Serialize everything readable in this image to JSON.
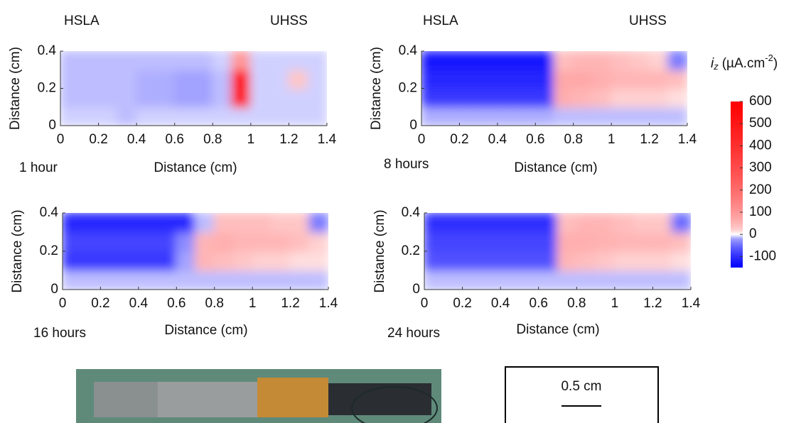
{
  "chart_data": [
    {
      "type": "heatmap",
      "left_label": "HSLA",
      "right_label": "UHSS",
      "caption": "1 hour",
      "xlabel": "Distance (cm)",
      "ylabel": "Distance (cm)",
      "xlim": [
        0,
        1.4
      ],
      "ylim": [
        0,
        0.4
      ],
      "xticks": [
        0,
        0.2,
        0.4,
        0.6,
        0.8,
        1,
        1.2,
        1.4
      ],
      "yticks": [
        0,
        0.2,
        0.4
      ],
      "x": [
        0.05,
        0.15,
        0.25,
        0.35,
        0.45,
        0.55,
        0.65,
        0.75,
        0.85,
        0.95,
        1.05,
        1.15,
        1.25,
        1.35
      ],
      "y": [
        0.05,
        0.15,
        0.25,
        0.35
      ],
      "values": [
        [
          -5,
          -5,
          -5,
          -10,
          -5,
          -5,
          -5,
          -5,
          -5,
          -5,
          -5,
          -5,
          -5,
          -5
        ],
        [
          -10,
          -10,
          -10,
          -10,
          -15,
          -15,
          -20,
          -20,
          -10,
          500,
          -5,
          -5,
          -5,
          -5
        ],
        [
          -10,
          -10,
          -10,
          -10,
          -15,
          -15,
          -20,
          -20,
          -10,
          550,
          -5,
          -5,
          30,
          -5
        ],
        [
          -10,
          -10,
          -10,
          -10,
          -10,
          -10,
          -10,
          -10,
          -5,
          100,
          -5,
          -5,
          -5,
          -5
        ]
      ]
    },
    {
      "type": "heatmap",
      "left_label": "HSLA",
      "right_label": "UHSS",
      "caption": "8 hours",
      "xlabel": "Distance (cm)",
      "ylabel": "Distance (cm)",
      "xlim": [
        0,
        1.4
      ],
      "ylim": [
        0,
        0.4
      ],
      "xticks": [
        0,
        0.2,
        0.4,
        0.6,
        0.8,
        1,
        1.2,
        1.4
      ],
      "yticks": [
        0,
        0.2,
        0.4
      ],
      "x": [
        0.05,
        0.15,
        0.25,
        0.35,
        0.45,
        0.55,
        0.65,
        0.75,
        0.85,
        0.95,
        1.05,
        1.15,
        1.25,
        1.35
      ],
      "y": [
        0.05,
        0.15,
        0.25,
        0.35
      ],
      "values": [
        [
          -15,
          -15,
          -15,
          -15,
          -15,
          -15,
          -15,
          -10,
          -10,
          -10,
          -10,
          -10,
          -10,
          -10
        ],
        [
          -90,
          -90,
          -90,
          -90,
          -90,
          -90,
          -90,
          60,
          50,
          40,
          20,
          20,
          20,
          10
        ],
        [
          -110,
          -110,
          -110,
          -110,
          -110,
          -110,
          -110,
          70,
          70,
          60,
          50,
          50,
          50,
          40
        ],
        [
          -130,
          -130,
          -130,
          -130,
          -130,
          -130,
          -130,
          40,
          50,
          50,
          40,
          30,
          20,
          -40
        ]
      ]
    },
    {
      "type": "heatmap",
      "caption": "16 hours",
      "xlabel": "Distance (cm)",
      "ylabel": "Distance (cm)",
      "xlim": [
        0,
        1.4
      ],
      "ylim": [
        0,
        0.4
      ],
      "xticks": [
        0,
        0.2,
        0.4,
        0.6,
        0.8,
        1,
        1.2,
        1.4
      ],
      "yticks": [
        0,
        0.2,
        0.4
      ],
      "x": [
        0.05,
        0.15,
        0.25,
        0.35,
        0.45,
        0.55,
        0.65,
        0.75,
        0.85,
        0.95,
        1.05,
        1.15,
        1.25,
        1.35
      ],
      "y": [
        0.05,
        0.15,
        0.25,
        0.35
      ],
      "values": [
        [
          -10,
          -10,
          -10,
          -10,
          -10,
          -10,
          -10,
          -10,
          -10,
          -10,
          -10,
          -10,
          -10,
          -10
        ],
        [
          -90,
          -90,
          -90,
          -90,
          -90,
          -90,
          -20,
          50,
          40,
          30,
          20,
          20,
          10,
          10
        ],
        [
          -80,
          -80,
          -80,
          -80,
          -80,
          -80,
          -30,
          50,
          60,
          50,
          50,
          50,
          40,
          20
        ],
        [
          -110,
          -110,
          -110,
          -110,
          -110,
          -110,
          -110,
          -10,
          40,
          40,
          40,
          30,
          30,
          -40
        ]
      ]
    },
    {
      "type": "heatmap",
      "caption": "24 hours",
      "xlabel": "Distance (cm)",
      "ylabel": "Distance (cm)",
      "xlim": [
        0,
        1.4
      ],
      "ylim": [
        0,
        0.4
      ],
      "xticks": [
        0,
        0.2,
        0.4,
        0.6,
        0.8,
        1,
        1.2,
        1.4
      ],
      "yticks": [
        0,
        0.2,
        0.4
      ],
      "x": [
        0.05,
        0.15,
        0.25,
        0.35,
        0.45,
        0.55,
        0.65,
        0.75,
        0.85,
        0.95,
        1.05,
        1.15,
        1.25,
        1.35
      ],
      "y": [
        0.05,
        0.15,
        0.25,
        0.35
      ],
      "values": [
        [
          -10,
          -10,
          -10,
          -10,
          -10,
          -10,
          -10,
          -10,
          -10,
          -10,
          -10,
          -10,
          -10,
          -10
        ],
        [
          -70,
          -70,
          -70,
          -70,
          -70,
          -70,
          -70,
          50,
          40,
          30,
          20,
          20,
          20,
          10
        ],
        [
          -80,
          -80,
          -80,
          -80,
          -80,
          -80,
          -80,
          60,
          60,
          55,
          50,
          50,
          50,
          40
        ],
        [
          -100,
          -100,
          -100,
          -100,
          -100,
          -100,
          -100,
          40,
          50,
          50,
          40,
          30,
          30,
          -50
        ]
      ]
    },
    {
      "type": "colorbar",
      "symbol": "i",
      "subscript": "z",
      "unit": "(µA.cm",
      "superscript": "-2",
      "unit_end": ")",
      "ylim": [
        -150,
        600
      ],
      "yticks": [
        -100,
        0,
        100,
        200,
        300,
        400,
        500,
        600
      ]
    }
  ],
  "scale_bar": {
    "label": "0.5 cm"
  }
}
